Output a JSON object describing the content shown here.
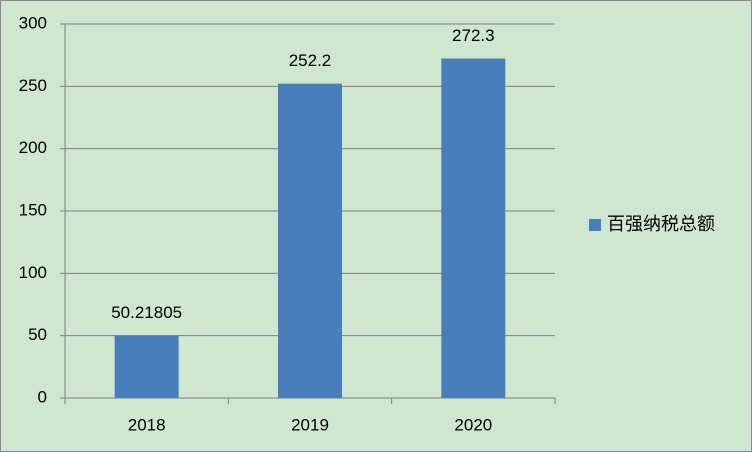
{
  "chart_data": {
    "type": "bar",
    "categories": [
      "2018",
      "2019",
      "2020"
    ],
    "series": [
      {
        "name": "百强纳税总额",
        "color": "#4a7ebb",
        "values": [
          50.21805,
          252.2,
          272.3
        ]
      }
    ],
    "ylim": [
      0,
      300
    ],
    "yticks": [
      0,
      50,
      100,
      150,
      200,
      250,
      300
    ],
    "grid": true,
    "legend": "right"
  }
}
